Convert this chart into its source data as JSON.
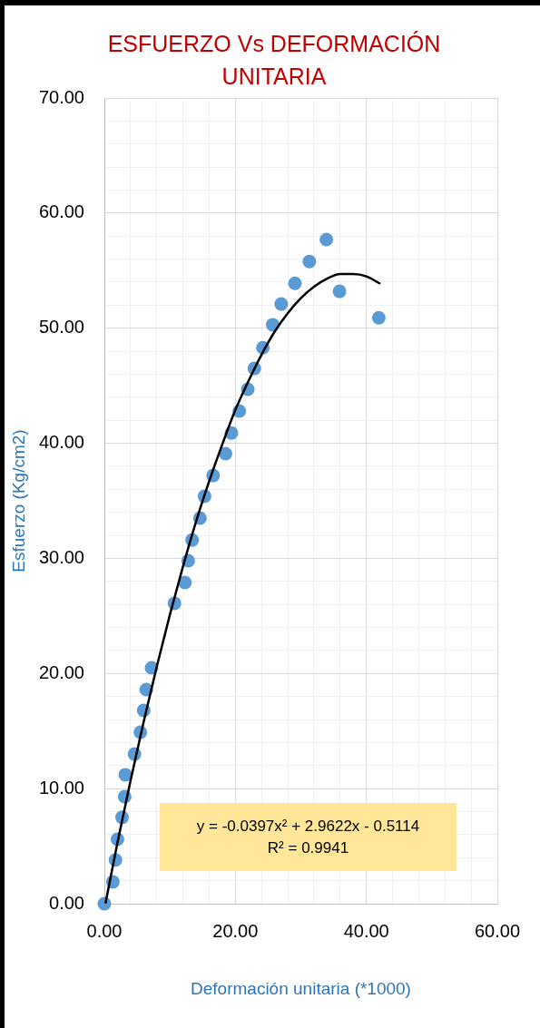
{
  "chart_data": {
    "type": "scatter",
    "title": "ESFUERZO Vs DEFORMACIÓN UNITARIA",
    "xlabel": "Deformación unitaria (*1000)",
    "ylabel": "Esfuerzo (Kg/cm2)",
    "xlim": [
      0,
      60
    ],
    "xticks": [
      {
        "value": 0,
        "label": "0.00"
      },
      {
        "value": 4,
        "label": null
      },
      {
        "value": 8,
        "label": null
      },
      {
        "value": 12,
        "label": null
      },
      {
        "value": 16,
        "label": null
      },
      {
        "value": 20,
        "label": "20.00"
      },
      {
        "value": 24,
        "label": null
      },
      {
        "value": 28,
        "label": null
      },
      {
        "value": 32,
        "label": null
      },
      {
        "value": 36,
        "label": null
      },
      {
        "value": 40,
        "label": "40.00"
      },
      {
        "value": 44,
        "label": null
      },
      {
        "value": 48,
        "label": null
      },
      {
        "value": 52,
        "label": null
      },
      {
        "value": 56,
        "label": null
      },
      {
        "value": 60,
        "label": "60.00"
      }
    ],
    "ylim": [
      0,
      70
    ],
    "yticks": [
      {
        "value": 0,
        "label": "0.00"
      },
      {
        "value": 2,
        "label": null
      },
      {
        "value": 4,
        "label": null
      },
      {
        "value": 6,
        "label": null
      },
      {
        "value": 8,
        "label": null
      },
      {
        "value": 10,
        "label": "10.00"
      },
      {
        "value": 12,
        "label": null
      },
      {
        "value": 14,
        "label": null
      },
      {
        "value": 16,
        "label": null
      },
      {
        "value": 18,
        "label": null
      },
      {
        "value": 20,
        "label": "20.00"
      },
      {
        "value": 22,
        "label": null
      },
      {
        "value": 24,
        "label": null
      },
      {
        "value": 26,
        "label": null
      },
      {
        "value": 28,
        "label": null
      },
      {
        "value": 30,
        "label": "30.00"
      },
      {
        "value": 32,
        "label": null
      },
      {
        "value": 34,
        "label": null
      },
      {
        "value": 36,
        "label": null
      },
      {
        "value": 38,
        "label": null
      },
      {
        "value": 40,
        "label": "40.00"
      },
      {
        "value": 42,
        "label": null
      },
      {
        "value": 44,
        "label": null
      },
      {
        "value": 46,
        "label": null
      },
      {
        "value": 48,
        "label": null
      },
      {
        "value": 50,
        "label": "50.00"
      },
      {
        "value": 52,
        "label": null
      },
      {
        "value": 54,
        "label": null
      },
      {
        "value": 56,
        "label": null
      },
      {
        "value": 58,
        "label": null
      },
      {
        "value": 60,
        "label": "60.00"
      },
      {
        "value": 62,
        "label": null
      },
      {
        "value": 64,
        "label": null
      },
      {
        "value": 66,
        "label": null
      },
      {
        "value": 68,
        "label": null
      },
      {
        "value": 70,
        "label": "70.00"
      }
    ],
    "grid": true,
    "marker": "circle",
    "series": [
      {
        "color": "#5b9bd5",
        "x": [
          0,
          1.3,
          1.7,
          2.0,
          2.7,
          3.1,
          3.2,
          4.6,
          5.5,
          6.0,
          6.4,
          7.2,
          10.7,
          12.3,
          12.8,
          13.4,
          14.6,
          15.3,
          16.6,
          18.5,
          19.4,
          20.6,
          21.9,
          22.9,
          24.2,
          25.7,
          27.0,
          29.1,
          31.3,
          33.9,
          35.9,
          41.9
        ],
        "values": [
          0,
          1.9,
          3.8,
          5.6,
          7.5,
          9.3,
          11.2,
          13.0,
          14.9,
          16.8,
          18.6,
          20.5,
          26.1,
          27.9,
          29.8,
          31.6,
          33.5,
          35.4,
          37.2,
          39.1,
          40.9,
          42.8,
          44.7,
          46.5,
          48.3,
          50.3,
          52.1,
          53.9,
          55.8,
          57.7,
          53.2,
          50.9
        ]
      },
      {
        "type": "line",
        "color": "#000000",
        "marker": "none",
        "x": [
          0.2,
          2,
          4,
          6,
          8,
          10,
          12,
          14,
          16,
          18,
          20,
          22,
          24,
          26,
          28,
          30,
          32,
          34,
          36,
          38,
          40,
          42
        ],
        "values": [
          0.1,
          5.3,
          10.7,
          15.8,
          20.6,
          25.1,
          29.3,
          33.2,
          36.7,
          39.9,
          42.9,
          45.4,
          47.7,
          49.7,
          51.3,
          52.6,
          53.6,
          54.3,
          54.7,
          54.7,
          54.5,
          53.9
        ]
      }
    ],
    "annotations": [
      "y = -0.0397x² + 2.9622x - 0.5114",
      "R² = 0.9941"
    ]
  }
}
